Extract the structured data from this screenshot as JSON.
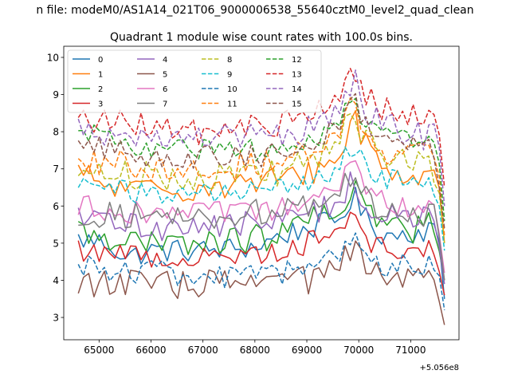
{
  "suptitle": "n file: modeM0/AS1A14_021T06_9000006538_55640cztM0_level2_quad_clean",
  "chart_data": {
    "type": "line",
    "title": "Quadrant 1 module wise count rates with 100.0s bins.",
    "xlabel": "",
    "ylabel": "",
    "x_offset_label": "+5.056e8",
    "x_range": [
      64600,
      71650
    ],
    "xlim": [
      64320,
      71930
    ],
    "ylim": [
      2.4,
      10.3
    ],
    "xticks": [
      65000,
      66000,
      67000,
      68000,
      69000,
      70000,
      71000
    ],
    "xtick_labels": [
      "65000",
      "66000",
      "67000",
      "68000",
      "69000",
      "70000",
      "71000"
    ],
    "yticks": [
      3,
      4,
      5,
      6,
      7,
      8,
      9,
      10
    ],
    "ytick_labels": [
      "3",
      "4",
      "5",
      "6",
      "7",
      "8",
      "9",
      "10"
    ],
    "grid": false,
    "legend_position": "top-left",
    "legend_columns": 4,
    "series": [
      {
        "name": "0",
        "color": "#1f77b4",
        "dash": "solid",
        "shape": [
          [
            64600,
            5.1
          ],
          [
            65200,
            5.0
          ],
          [
            65500,
            4.6
          ],
          [
            66000,
            4.8
          ],
          [
            67000,
            4.8
          ],
          [
            68000,
            4.9
          ],
          [
            68500,
            5.2
          ],
          [
            69000,
            5.4
          ],
          [
            69600,
            5.6
          ],
          [
            69900,
            6.3
          ],
          [
            70100,
            5.7
          ],
          [
            70500,
            5.2
          ],
          [
            71000,
            5.3
          ],
          [
            71500,
            5.4
          ],
          [
            71650,
            3.5
          ]
        ]
      },
      {
        "name": "1",
        "color": "#ff7f0e",
        "dash": "solid",
        "shape": [
          [
            64600,
            6.9
          ],
          [
            65200,
            6.5
          ],
          [
            66000,
            6.4
          ],
          [
            67000,
            6.5
          ],
          [
            67800,
            6.6
          ],
          [
            68500,
            6.7
          ],
          [
            69000,
            6.9
          ],
          [
            69600,
            7.2
          ],
          [
            69900,
            8.5
          ],
          [
            70100,
            7.8
          ],
          [
            70500,
            7.0
          ],
          [
            71000,
            6.8
          ],
          [
            71500,
            6.7
          ],
          [
            71650,
            5.0
          ]
        ]
      },
      {
        "name": "2",
        "color": "#2ca02c",
        "dash": "solid",
        "shape": [
          [
            64600,
            5.3
          ],
          [
            65200,
            5.2
          ],
          [
            66000,
            4.9
          ],
          [
            67000,
            5.0
          ],
          [
            67800,
            5.1
          ],
          [
            68500,
            5.2
          ],
          [
            69000,
            5.6
          ],
          [
            69600,
            5.7
          ],
          [
            69900,
            6.8
          ],
          [
            70100,
            5.9
          ],
          [
            70500,
            5.5
          ],
          [
            71000,
            5.3
          ],
          [
            71500,
            5.7
          ],
          [
            71650,
            4.0
          ]
        ]
      },
      {
        "name": "3",
        "color": "#d62728",
        "dash": "solid",
        "shape": [
          [
            64600,
            4.8
          ],
          [
            65200,
            4.8
          ],
          [
            66000,
            4.6
          ],
          [
            67000,
            4.6
          ],
          [
            67800,
            4.7
          ],
          [
            68500,
            4.8
          ],
          [
            69000,
            5.0
          ],
          [
            69600,
            5.4
          ],
          [
            69900,
            6.0
          ],
          [
            70100,
            5.2
          ],
          [
            70500,
            4.8
          ],
          [
            71000,
            4.8
          ],
          [
            71500,
            4.9
          ],
          [
            71650,
            3.6
          ]
        ]
      },
      {
        "name": "4",
        "color": "#9467bd",
        "dash": "solid",
        "shape": [
          [
            64600,
            5.6
          ],
          [
            65200,
            5.6
          ],
          [
            66000,
            5.4
          ],
          [
            67000,
            5.5
          ],
          [
            67800,
            5.5
          ],
          [
            68500,
            5.6
          ],
          [
            69000,
            5.8
          ],
          [
            69600,
            6.1
          ],
          [
            69900,
            6.8
          ],
          [
            70100,
            6.0
          ],
          [
            70500,
            5.7
          ],
          [
            71000,
            5.7
          ],
          [
            71500,
            5.7
          ],
          [
            71650,
            3.9
          ]
        ]
      },
      {
        "name": "5",
        "color": "#8c564b",
        "dash": "solid",
        "shape": [
          [
            64600,
            4.0
          ],
          [
            65200,
            3.9
          ],
          [
            66000,
            3.9
          ],
          [
            67000,
            3.9
          ],
          [
            67800,
            3.9
          ],
          [
            68500,
            4.0
          ],
          [
            69000,
            4.0
          ],
          [
            69600,
            4.3
          ],
          [
            69900,
            4.8
          ],
          [
            70100,
            4.4
          ],
          [
            70500,
            4.0
          ],
          [
            71000,
            4.0
          ],
          [
            71500,
            4.0
          ],
          [
            71650,
            2.8
          ]
        ]
      },
      {
        "name": "6",
        "color": "#e377c2",
        "dash": "solid",
        "shape": [
          [
            64600,
            6.0
          ],
          [
            65200,
            5.9
          ],
          [
            66000,
            5.8
          ],
          [
            67000,
            5.8
          ],
          [
            67800,
            5.8
          ],
          [
            68500,
            5.9
          ],
          [
            69000,
            6.1
          ],
          [
            69600,
            6.4
          ],
          [
            69900,
            7.2
          ],
          [
            70100,
            6.6
          ],
          [
            70500,
            6.1
          ],
          [
            71000,
            6.0
          ],
          [
            71500,
            5.9
          ],
          [
            71650,
            4.2
          ]
        ]
      },
      {
        "name": "7",
        "color": "#7f7f7f",
        "dash": "solid",
        "shape": [
          [
            64600,
            5.7
          ],
          [
            65200,
            5.8
          ],
          [
            66000,
            5.7
          ],
          [
            67000,
            5.7
          ],
          [
            67800,
            5.8
          ],
          [
            68500,
            5.9
          ],
          [
            69000,
            6.0
          ],
          [
            69600,
            6.3
          ],
          [
            69900,
            6.9
          ],
          [
            70100,
            6.2
          ],
          [
            70500,
            5.9
          ],
          [
            71000,
            5.8
          ],
          [
            71500,
            5.8
          ],
          [
            71650,
            4.0
          ]
        ]
      },
      {
        "name": "8",
        "color": "#bcbd22",
        "dash": "dashed",
        "shape": [
          [
            64600,
            7.0
          ],
          [
            65200,
            6.9
          ],
          [
            66000,
            6.8
          ],
          [
            67000,
            6.8
          ],
          [
            67800,
            6.8
          ],
          [
            68500,
            6.9
          ],
          [
            69000,
            7.2
          ],
          [
            69600,
            7.7
          ],
          [
            69900,
            8.6
          ],
          [
            70100,
            7.8
          ],
          [
            70500,
            7.3
          ],
          [
            71000,
            7.2
          ],
          [
            71500,
            7.0
          ],
          [
            71650,
            5.0
          ]
        ]
      },
      {
        "name": "9",
        "color": "#17becf",
        "dash": "dashed",
        "shape": [
          [
            64600,
            6.6
          ],
          [
            65200,
            6.5
          ],
          [
            66000,
            6.3
          ],
          [
            67000,
            6.3
          ],
          [
            67800,
            6.4
          ],
          [
            68500,
            6.5
          ],
          [
            69000,
            6.6
          ],
          [
            69600,
            7.0
          ],
          [
            69900,
            7.8
          ],
          [
            70100,
            7.1
          ],
          [
            70500,
            6.7
          ],
          [
            71000,
            6.6
          ],
          [
            71500,
            6.5
          ],
          [
            71650,
            4.8
          ]
        ]
      },
      {
        "name": "10",
        "color": "#1f77b4",
        "dash": "dashed",
        "shape": [
          [
            64600,
            4.5
          ],
          [
            65200,
            4.3
          ],
          [
            66000,
            4.2
          ],
          [
            67000,
            4.1
          ],
          [
            67800,
            4.1
          ],
          [
            68500,
            4.2
          ],
          [
            69000,
            4.3
          ],
          [
            69600,
            4.6
          ],
          [
            69900,
            5.1
          ],
          [
            70100,
            4.7
          ],
          [
            70500,
            4.4
          ],
          [
            71000,
            4.4
          ],
          [
            71500,
            4.4
          ],
          [
            71650,
            3.2
          ]
        ]
      },
      {
        "name": "11",
        "color": "#ff7f0e",
        "dash": "dashed",
        "shape": [
          [
            64600,
            7.3
          ],
          [
            65200,
            7.2
          ],
          [
            66000,
            7.0
          ],
          [
            67000,
            7.0
          ],
          [
            67800,
            7.1
          ],
          [
            68500,
            7.2
          ],
          [
            69000,
            7.4
          ],
          [
            69600,
            7.9
          ],
          [
            69900,
            8.8
          ],
          [
            70100,
            8.0
          ],
          [
            70500,
            7.5
          ],
          [
            71000,
            7.4
          ],
          [
            71500,
            7.3
          ],
          [
            71650,
            5.2
          ]
        ]
      },
      {
        "name": "12",
        "color": "#2ca02c",
        "dash": "dashed",
        "shape": [
          [
            64600,
            8.0
          ],
          [
            65200,
            7.8
          ],
          [
            66000,
            7.5
          ],
          [
            67000,
            7.5
          ],
          [
            67800,
            7.5
          ],
          [
            68500,
            7.6
          ],
          [
            69000,
            7.7
          ],
          [
            69600,
            8.2
          ],
          [
            69900,
            9.1
          ],
          [
            70100,
            8.3
          ],
          [
            70500,
            7.8
          ],
          [
            71000,
            7.7
          ],
          [
            71500,
            7.6
          ],
          [
            71650,
            5.6
          ]
        ]
      },
      {
        "name": "13",
        "color": "#d62728",
        "dash": "dashed",
        "shape": [
          [
            64600,
            8.3
          ],
          [
            65200,
            8.3
          ],
          [
            66000,
            8.1
          ],
          [
            67000,
            8.0
          ],
          [
            67800,
            8.1
          ],
          [
            68500,
            8.2
          ],
          [
            69000,
            8.4
          ],
          [
            69600,
            8.9
          ],
          [
            69900,
            9.7
          ],
          [
            70100,
            9.0
          ],
          [
            70500,
            8.6
          ],
          [
            71000,
            8.5
          ],
          [
            71500,
            8.2
          ],
          [
            71650,
            6.5
          ]
        ]
      },
      {
        "name": "14",
        "color": "#9467bd",
        "dash": "dashed",
        "shape": [
          [
            64600,
            8.2
          ],
          [
            65200,
            8.0
          ],
          [
            66000,
            7.8
          ],
          [
            67000,
            7.8
          ],
          [
            67800,
            7.8
          ],
          [
            68500,
            7.9
          ],
          [
            69000,
            8.1
          ],
          [
            69600,
            8.6
          ],
          [
            69900,
            9.4
          ],
          [
            70100,
            8.7
          ],
          [
            70500,
            8.1
          ],
          [
            71000,
            8.0
          ],
          [
            71500,
            7.8
          ],
          [
            71650,
            6.0
          ]
        ]
      },
      {
        "name": "15",
        "color": "#8c564b",
        "dash": "dashed",
        "shape": [
          [
            64600,
            7.6
          ],
          [
            65200,
            7.5
          ],
          [
            66000,
            7.3
          ],
          [
            67000,
            7.3
          ],
          [
            67800,
            7.3
          ],
          [
            68500,
            7.4
          ],
          [
            69000,
            7.6
          ],
          [
            69600,
            8.1
          ],
          [
            69900,
            9.0
          ],
          [
            70100,
            8.2
          ],
          [
            70500,
            7.7
          ],
          [
            71000,
            7.6
          ],
          [
            71500,
            7.5
          ],
          [
            71650,
            5.4
          ]
        ]
      }
    ]
  }
}
